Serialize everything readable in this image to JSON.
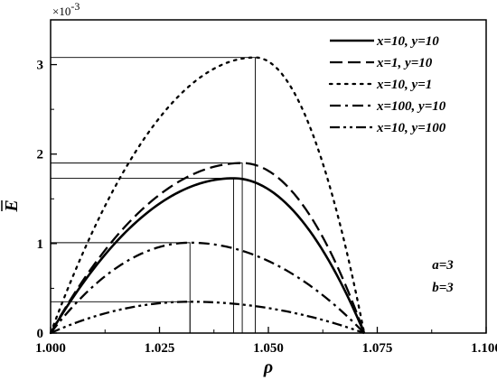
{
  "chart_data": {
    "type": "line",
    "title": "",
    "xlabel": "ρ",
    "ylabel": "E",
    "y_multiplier_base": "×10",
    "y_multiplier_exp": "-3",
    "xlim": [
      1.0,
      1.1
    ],
    "ylim": [
      0,
      3.5
    ],
    "x_ticks": [
      1.0,
      1.025,
      1.05,
      1.075,
      1.1
    ],
    "x_tick_labels": [
      "1.000",
      "1.025",
      "1.050",
      "1.075",
      "1.100"
    ],
    "y_ticks": [
      0,
      1,
      2,
      3
    ],
    "y_tick_labels": [
      "0",
      "1",
      "2",
      "3"
    ],
    "x_zero": 1.0,
    "x_end": 1.072,
    "grid": false,
    "legend_position": "top-right",
    "series": [
      {
        "name": "x=10, y=10",
        "style": "solid",
        "peak_x": 1.042,
        "peak_y": 1.73
      },
      {
        "name": "x=1, y=10",
        "style": "dash",
        "peak_x": 1.044,
        "peak_y": 1.9
      },
      {
        "name": "x=10, y=1",
        "style": "dot",
        "peak_x": 1.047,
        "peak_y": 3.08
      },
      {
        "name": "x=100, y=10",
        "style": "dashdot",
        "peak_x": 1.032,
        "peak_y": 1.01
      },
      {
        "name": "x=10, y=100",
        "style": "dashdotdot",
        "peak_x": 1.032,
        "peak_y": 0.35
      }
    ],
    "annotations": [
      "a=3",
      "b=3"
    ]
  }
}
